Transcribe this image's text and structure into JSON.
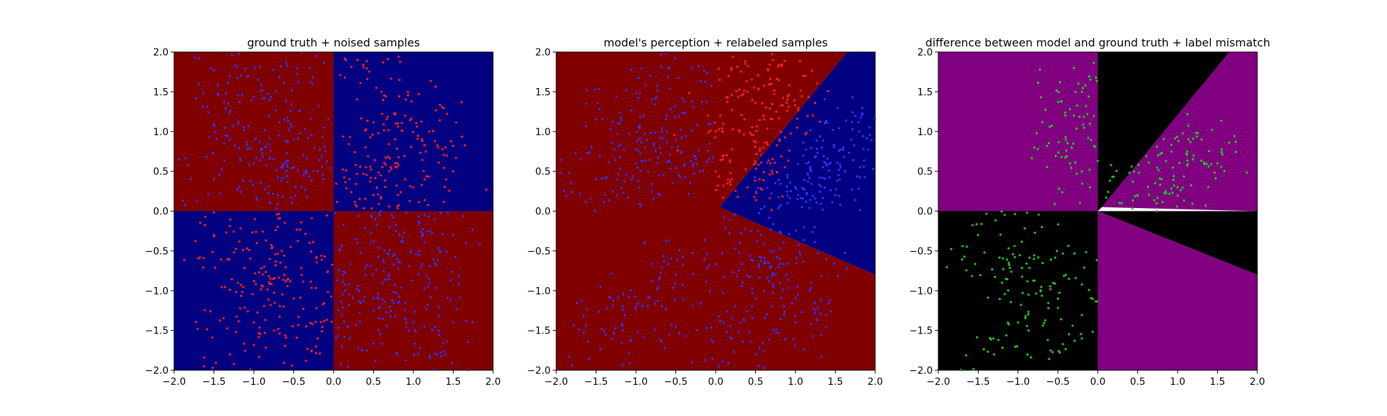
{
  "figure": {
    "background": "#ffffff"
  },
  "chart_data": [
    {
      "type": "scatter",
      "title": "ground truth + noised samples",
      "xlabel": "",
      "ylabel": "",
      "xlim": [
        -2.0,
        2.0
      ],
      "ylim": [
        -2.0,
        2.0
      ],
      "xticks": [
        "−2.0",
        "−1.5",
        "−1.0",
        "−0.5",
        "0.0",
        "0.5",
        "1.0",
        "1.5",
        "2.0"
      ],
      "yticks": [
        "−2.0",
        "−1.5",
        "−1.0",
        "−0.5",
        "0.0",
        "0.5",
        "1.0",
        "1.5",
        "2.0"
      ],
      "grid": false,
      "background_regions": [
        {
          "x": [
            -2.0,
            0.0
          ],
          "y": [
            0.0,
            2.0
          ],
          "color": "#800000"
        },
        {
          "x": [
            0.0,
            2.0
          ],
          "y": [
            0.0,
            2.0
          ],
          "color": "#000080"
        },
        {
          "x": [
            -2.0,
            0.0
          ],
          "y": [
            -2.0,
            0.0
          ],
          "color": "#000080"
        },
        {
          "x": [
            0.0,
            2.0
          ],
          "y": [
            -2.0,
            0.0
          ],
          "color": "#800000"
        }
      ],
      "series": [
        {
          "color": "#ff2020",
          "count_estimate": 470,
          "points": [
            [
              0.3,
              1.9
            ],
            [
              0.6,
              1.5
            ],
            [
              0.9,
              1.2
            ],
            [
              1.2,
              1.0
            ],
            [
              0.4,
              0.8
            ],
            [
              0.8,
              0.6
            ],
            [
              1.5,
              0.5
            ],
            [
              0.2,
              0.4
            ],
            [
              1.0,
              0.3
            ],
            [
              0.5,
              0.2
            ],
            [
              -0.3,
              -0.4
            ],
            [
              -0.8,
              -0.6
            ],
            [
              -1.2,
              -0.9
            ],
            [
              -0.5,
              -1.1
            ],
            [
              -1.0,
              -1.4
            ],
            [
              -0.2,
              -1.6
            ],
            [
              -1.5,
              -0.3
            ],
            [
              -0.7,
              -0.2
            ],
            [
              -1.3,
              -1.8
            ],
            [
              -0.4,
              -0.8
            ]
          ]
        },
        {
          "color": "#3333ff",
          "count_estimate": 530,
          "points": [
            [
              -0.3,
              1.8
            ],
            [
              -0.8,
              1.4
            ],
            [
              -1.2,
              1.1
            ],
            [
              -0.5,
              0.9
            ],
            [
              -1.0,
              0.6
            ],
            [
              -0.2,
              0.5
            ],
            [
              -1.5,
              0.4
            ],
            [
              -0.7,
              0.2
            ],
            [
              -1.3,
              1.7
            ],
            [
              -0.4,
              0.3
            ],
            [
              0.3,
              -0.4
            ],
            [
              0.8,
              -0.6
            ],
            [
              1.2,
              -0.9
            ],
            [
              0.5,
              -1.1
            ],
            [
              1.0,
              -1.4
            ],
            [
              0.2,
              -1.6
            ],
            [
              1.5,
              -0.3
            ],
            [
              0.7,
              -0.2
            ],
            [
              1.3,
              -1.8
            ],
            [
              0.4,
              -0.8
            ]
          ]
        }
      ]
    },
    {
      "type": "scatter",
      "title": "model's perception + relabeled samples",
      "xlabel": "",
      "ylabel": "",
      "xlim": [
        -2.0,
        2.0
      ],
      "ylim": [
        -2.0,
        2.0
      ],
      "xticks": [
        "−2.0",
        "−1.5",
        "−1.0",
        "−0.5",
        "0.0",
        "0.5",
        "1.0",
        "1.5",
        "2.0"
      ],
      "yticks": [
        "−2.0",
        "−1.5",
        "−1.0",
        "−0.5",
        "0.0",
        "0.5",
        "1.0",
        "1.5",
        "2.0"
      ],
      "grid": false,
      "background_regions": [
        {
          "polygon": [
            [
              -2.0,
              -2.0
            ],
            [
              2.0,
              -2.0
            ],
            [
              2.0,
              -0.8
            ],
            [
              0.05,
              0.05
            ],
            [
              1.65,
              2.0
            ],
            [
              -2.0,
              2.0
            ]
          ],
          "color": "#800000"
        },
        {
          "polygon": [
            [
              0.05,
              0.05
            ],
            [
              2.0,
              -0.8
            ],
            [
              2.0,
              2.0
            ],
            [
              1.65,
              2.0
            ]
          ],
          "color": "#000080"
        }
      ],
      "series": [
        {
          "color": "#ff2020",
          "count_estimate": 250,
          "points": [
            [
              0.2,
              1.8
            ],
            [
              0.4,
              1.5
            ],
            [
              0.6,
              1.2
            ],
            [
              0.3,
              1.0
            ],
            [
              0.8,
              0.9
            ],
            [
              0.1,
              0.7
            ],
            [
              0.5,
              0.6
            ],
            [
              0.9,
              1.4
            ],
            [
              0.2,
              0.4
            ],
            [
              0.4,
              0.3
            ],
            [
              1.1,
              1.7
            ],
            [
              0.7,
              1.6
            ],
            [
              -0.1,
              1.2
            ],
            [
              0.0,
              0.5
            ],
            [
              0.6,
              0.8
            ]
          ]
        },
        {
          "color": "#3333ff",
          "count_estimate": 750,
          "points": [
            [
              -0.3,
              1.8
            ],
            [
              -0.8,
              1.4
            ],
            [
              -1.2,
              1.1
            ],
            [
              -0.5,
              0.9
            ],
            [
              -1.0,
              0.6
            ],
            [
              -0.2,
              0.5
            ],
            [
              -1.5,
              0.4
            ],
            [
              -0.7,
              0.2
            ],
            [
              0.3,
              -0.4
            ],
            [
              0.8,
              -0.6
            ],
            [
              1.2,
              -0.9
            ],
            [
              0.5,
              -1.1
            ],
            [
              1.0,
              -1.4
            ],
            [
              0.2,
              -1.6
            ],
            [
              -0.5,
              -0.8
            ],
            [
              -1.0,
              -1.2
            ],
            [
              1.2,
              0.5
            ],
            [
              1.5,
              0.2
            ],
            [
              1.0,
              0.3
            ],
            [
              1.6,
              0.8
            ],
            [
              0.9,
              0.1
            ],
            [
              1.8,
              1.0
            ],
            [
              -1.4,
              -1.5
            ],
            [
              -0.3,
              -1.9
            ]
          ]
        }
      ]
    },
    {
      "type": "scatter",
      "title": "difference between model and ground truth + label mismatch",
      "xlabel": "",
      "ylabel": "",
      "xlim": [
        -2.0,
        2.0
      ],
      "ylim": [
        -2.0,
        2.0
      ],
      "xticks": [
        "−2.0",
        "−1.5",
        "−1.0",
        "−0.5",
        "0.0",
        "0.5",
        "1.0",
        "1.5",
        "2.0"
      ],
      "yticks": [
        "−2.0",
        "−1.5",
        "−1.0",
        "−0.5",
        "0.0",
        "0.5",
        "1.0",
        "1.5",
        "2.0"
      ],
      "grid": false,
      "background_regions": [
        {
          "x": [
            -2.0,
            0.0
          ],
          "y": [
            0.0,
            2.0
          ],
          "color": "#800080"
        },
        {
          "x": [
            -2.0,
            0.0
          ],
          "y": [
            -2.0,
            0.0
          ],
          "color": "#000000"
        },
        {
          "polygon": [
            [
              0.0,
              0.0
            ],
            [
              0.0,
              2.0
            ],
            [
              1.65,
              2.0
            ],
            [
              0.05,
              0.05
            ]
          ],
          "color": "#000000"
        },
        {
          "polygon": [
            [
              0.05,
              0.05
            ],
            [
              1.65,
              2.0
            ],
            [
              2.0,
              2.0
            ],
            [
              2.0,
              0.0
            ]
          ],
          "color": "#800080"
        },
        {
          "polygon": [
            [
              0.0,
              0.0
            ],
            [
              2.0,
              0.0
            ],
            [
              2.0,
              -0.8
            ]
          ],
          "color": "#000000"
        },
        {
          "polygon": [
            [
              0.0,
              0.0
            ],
            [
              2.0,
              -0.8
            ],
            [
              2.0,
              -2.0
            ],
            [
              0.0,
              -2.0
            ]
          ],
          "color": "#800080"
        }
      ],
      "series": [
        {
          "color": "#20cc20",
          "count_estimate": 400,
          "points": [
            [
              -0.3,
              1.8
            ],
            [
              -0.2,
              1.5
            ],
            [
              -0.1,
              1.1
            ],
            [
              -0.4,
              0.9
            ],
            [
              -0.2,
              0.5
            ],
            [
              -0.1,
              0.3
            ],
            [
              -0.3,
              1.2
            ],
            [
              -0.8,
              -0.6
            ],
            [
              -1.2,
              -0.9
            ],
            [
              -0.5,
              -1.1
            ],
            [
              -1.0,
              -1.4
            ],
            [
              -0.2,
              -1.6
            ],
            [
              -1.5,
              -0.3
            ],
            [
              -0.7,
              -0.2
            ],
            [
              -1.3,
              -1.8
            ],
            [
              -0.4,
              -0.8
            ],
            [
              0.5,
              0.2
            ],
            [
              0.8,
              0.4
            ],
            [
              1.2,
              0.7
            ],
            [
              1.5,
              0.6
            ],
            [
              1.0,
              0.3
            ],
            [
              1.3,
              0.9
            ],
            [
              0.3,
              0.1
            ]
          ]
        }
      ]
    }
  ]
}
